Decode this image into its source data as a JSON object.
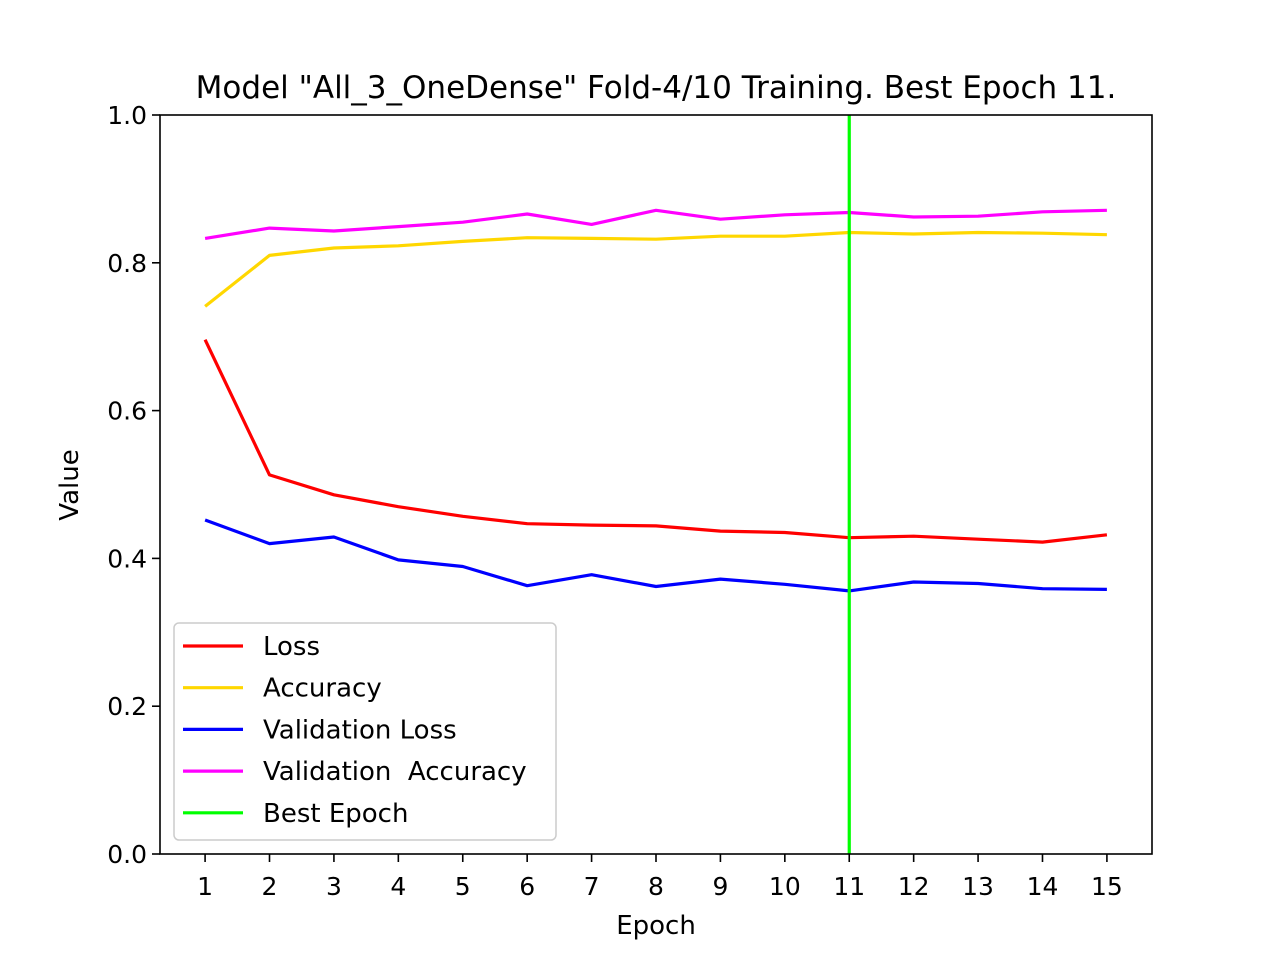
{
  "chart_data": {
    "type": "line",
    "title": "Model \"All_3_OneDense\" Fold-4/10 Training. Best Epoch 11.",
    "xlabel": "Epoch",
    "ylabel": "Value",
    "x": [
      1,
      2,
      3,
      4,
      5,
      6,
      7,
      8,
      9,
      10,
      11,
      12,
      13,
      14,
      15
    ],
    "xlim": [
      0.3,
      15.7
    ],
    "ylim": [
      0.0,
      1.0
    ],
    "yticks": [
      0.0,
      0.2,
      0.4,
      0.6,
      0.8,
      1.0
    ],
    "ytick_labels": [
      "0.0",
      "0.2",
      "0.4",
      "0.6",
      "0.8",
      "1.0"
    ],
    "xtick_labels": [
      "1",
      "2",
      "3",
      "4",
      "5",
      "6",
      "7",
      "8",
      "9",
      "10",
      "11",
      "12",
      "13",
      "14",
      "15"
    ],
    "grid": false,
    "legend_position": "lower-left",
    "series": [
      {
        "name": "Loss",
        "color": "#ff0000",
        "values": [
          0.696,
          0.513,
          0.486,
          0.47,
          0.457,
          0.447,
          0.445,
          0.444,
          0.437,
          0.435,
          0.428,
          0.43,
          0.426,
          0.422,
          0.432
        ]
      },
      {
        "name": "Accuracy",
        "color": "#ffd700",
        "values": [
          0.741,
          0.81,
          0.82,
          0.823,
          0.829,
          0.834,
          0.833,
          0.832,
          0.836,
          0.836,
          0.841,
          0.839,
          0.841,
          0.84,
          0.838
        ]
      },
      {
        "name": "Validation Loss",
        "color": "#0000ff",
        "values": [
          0.452,
          0.42,
          0.429,
          0.398,
          0.389,
          0.363,
          0.378,
          0.362,
          0.372,
          0.365,
          0.356,
          0.368,
          0.366,
          0.359,
          0.358
        ]
      },
      {
        "name": "Validation  Accuracy",
        "color": "#ff00ff",
        "values": [
          0.833,
          0.847,
          0.843,
          0.849,
          0.855,
          0.866,
          0.852,
          0.871,
          0.859,
          0.865,
          0.868,
          0.862,
          0.863,
          0.869,
          0.871
        ]
      }
    ],
    "best_epoch": {
      "name": "Best Epoch",
      "x": 11,
      "color": "#00ff00"
    }
  }
}
